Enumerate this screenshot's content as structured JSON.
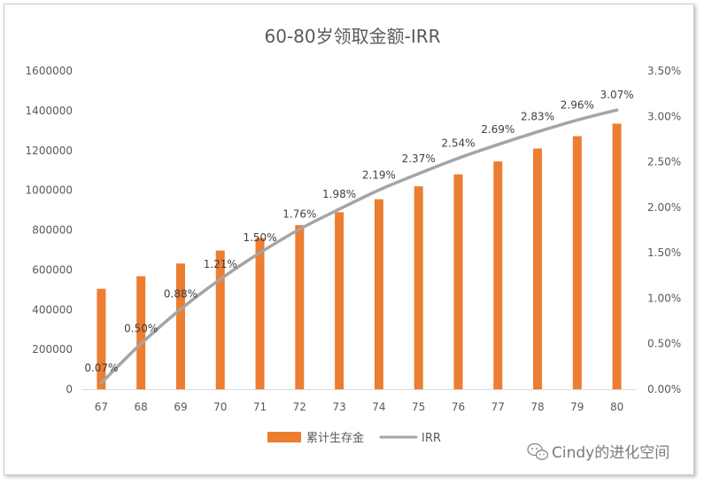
{
  "chart_data": {
    "type": "bar",
    "title": "60-80岁领取金额-IRR",
    "categories": [
      "67",
      "68",
      "69",
      "70",
      "71",
      "72",
      "73",
      "74",
      "75",
      "76",
      "77",
      "78",
      "79",
      "80"
    ],
    "series": [
      {
        "name": "累计生存金",
        "type": "bar",
        "axis": "left",
        "color": "#ED7D31",
        "values": [
          505000,
          568000,
          632000,
          697000,
          760000,
          825000,
          890000,
          955000,
          1020000,
          1080000,
          1145000,
          1210000,
          1272000,
          1335000
        ]
      },
      {
        "name": "IRR",
        "type": "line",
        "axis": "right",
        "color": "#A5A5A5",
        "values": [
          0.07,
          0.5,
          0.88,
          1.21,
          1.5,
          1.76,
          1.98,
          2.19,
          2.37,
          2.54,
          2.69,
          2.83,
          2.96,
          3.07
        ],
        "labels": [
          "0.07%",
          "0.50%",
          "0.88%",
          "1.21%",
          "1.50%",
          "1.76%",
          "1.98%",
          "2.19%",
          "2.37%",
          "2.54%",
          "2.69%",
          "2.83%",
          "2.96%",
          "3.07%"
        ]
      }
    ],
    "y_left": {
      "ylim": [
        0,
        1600000
      ],
      "ticks": [
        "0",
        "200000",
        "400000",
        "600000",
        "800000",
        "1000000",
        "1200000",
        "1400000",
        "1600000"
      ]
    },
    "y_right": {
      "ylim": [
        0,
        3.5
      ],
      "ticks": [
        "0.00%",
        "0.50%",
        "1.00%",
        "1.50%",
        "2.00%",
        "2.50%",
        "3.00%",
        "3.50%"
      ]
    },
    "grid": false,
    "legend_position": "bottom"
  },
  "watermark": {
    "text": "Cindy的进化空间",
    "icon": "wechat-icon"
  }
}
